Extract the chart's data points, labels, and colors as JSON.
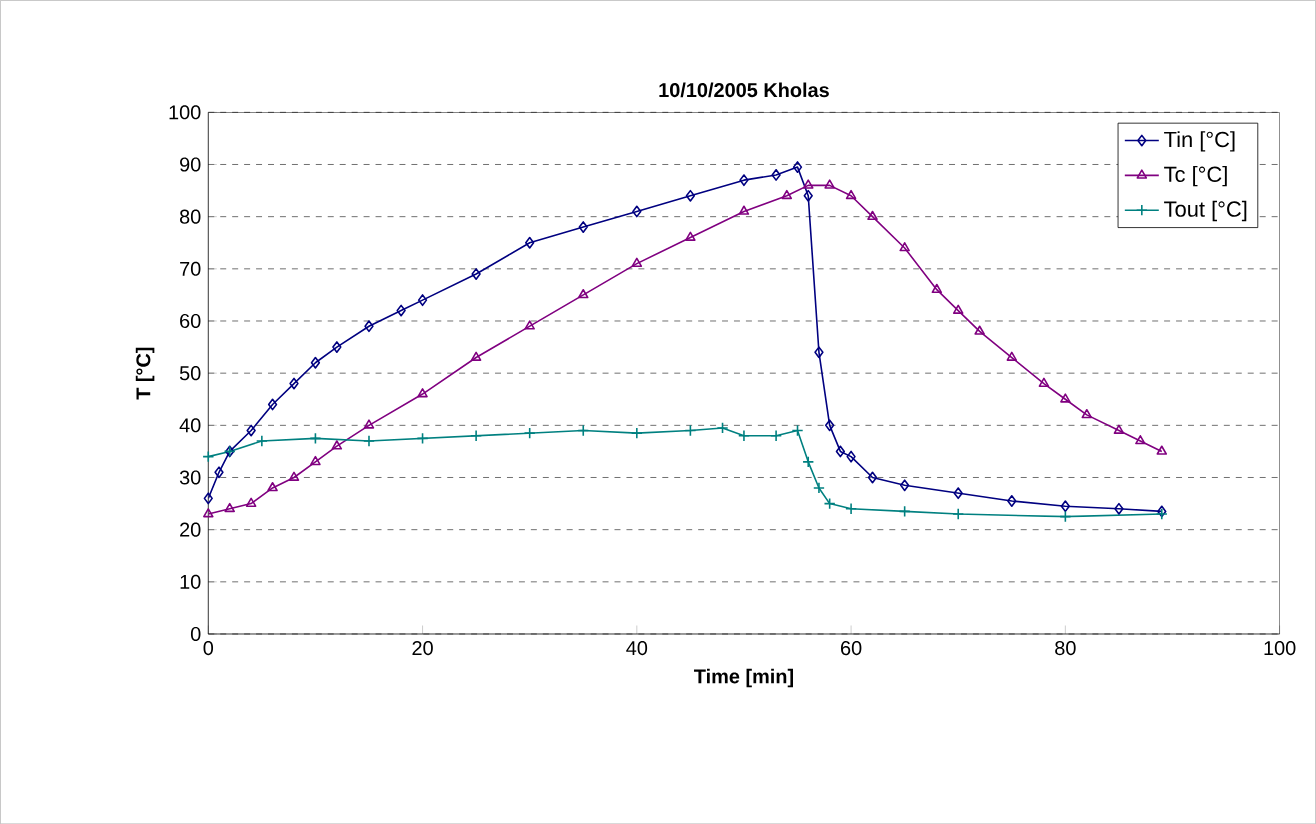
{
  "chart_data": {
    "type": "line",
    "title": "10/10/2005 Kholas",
    "xlabel": "Time [min]",
    "ylabel": "T [°C]",
    "xlim": [
      0,
      100
    ],
    "ylim": [
      0,
      100
    ],
    "xticks": [
      0,
      20,
      40,
      60,
      80,
      100
    ],
    "yticks": [
      0,
      10,
      20,
      30,
      40,
      50,
      60,
      70,
      80,
      90,
      100
    ],
    "grid": "y",
    "legend": "top right",
    "series": [
      {
        "name": "Tin [°C]",
        "color": "#000080",
        "marker": "diamond",
        "x": [
          0,
          1,
          2,
          4,
          6,
          8,
          10,
          12,
          15,
          18,
          20,
          25,
          30,
          35,
          40,
          45,
          50,
          53,
          55,
          56,
          57,
          58,
          59,
          60,
          62,
          65,
          70,
          75,
          80,
          85,
          89
        ],
        "values": [
          26,
          31,
          35,
          39,
          44,
          48,
          52,
          55,
          59,
          62,
          64,
          69,
          75,
          78,
          81,
          84,
          87,
          88,
          89.5,
          84,
          54,
          40,
          35,
          34,
          30,
          28.5,
          27,
          25.5,
          24.5,
          24,
          23.5
        ]
      },
      {
        "name": "Tc [°C]",
        "color": "#800080",
        "marker": "triangle",
        "x": [
          0,
          2,
          4,
          6,
          8,
          10,
          12,
          15,
          20,
          25,
          30,
          35,
          40,
          45,
          50,
          54,
          56,
          58,
          60,
          62,
          65,
          68,
          70,
          72,
          75,
          78,
          80,
          82,
          85,
          87,
          89
        ],
        "values": [
          23,
          24,
          25,
          28,
          30,
          33,
          36,
          40,
          46,
          53,
          59,
          65,
          71,
          76,
          81,
          84,
          86,
          86,
          84,
          80,
          74,
          66,
          62,
          58,
          53,
          48,
          45,
          42,
          39,
          37,
          35
        ]
      },
      {
        "name": "Tout [°C]",
        "color": "#008080",
        "marker": "cross",
        "x": [
          0,
          2,
          5,
          10,
          15,
          20,
          25,
          30,
          35,
          40,
          45,
          48,
          50,
          53,
          55,
          56,
          57,
          58,
          60,
          65,
          70,
          80,
          89
        ],
        "values": [
          34,
          35,
          37,
          37.5,
          37,
          37.5,
          38,
          38.5,
          39,
          38.5,
          39,
          39.5,
          38,
          38,
          39,
          33,
          28,
          25,
          24,
          23.5,
          23,
          22.5,
          23
        ]
      }
    ]
  }
}
